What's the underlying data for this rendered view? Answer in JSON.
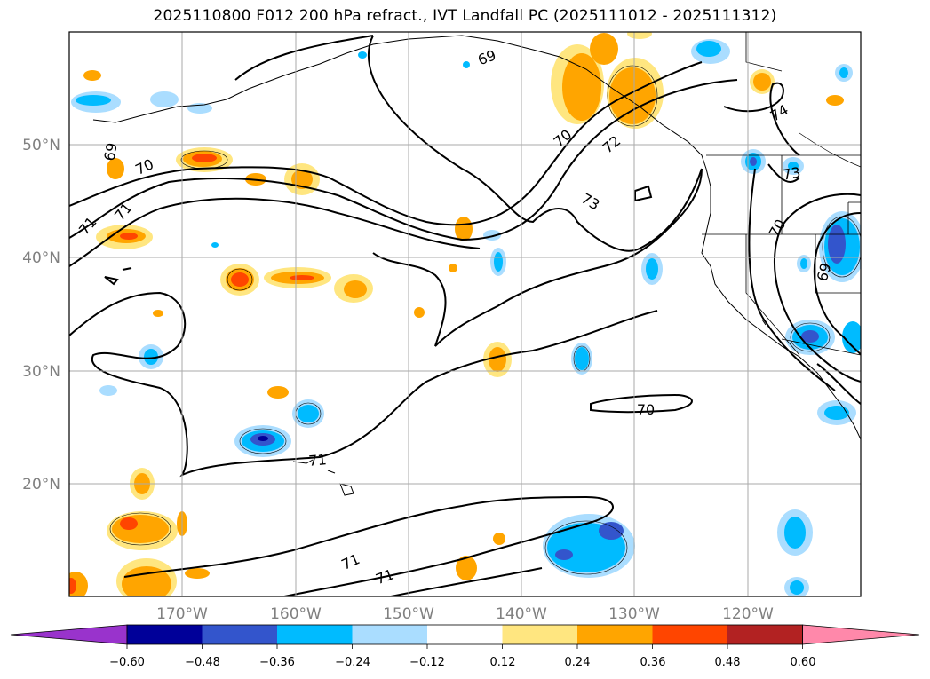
{
  "title": "2025110800 F012 200 hPa refract., IVT Landfall PC (2025111012 - 2025111312)",
  "map": {
    "lat_labels": [
      "50°N",
      "40°N",
      "30°N",
      "20°N"
    ],
    "lon_labels": [
      "170°W",
      "160°W",
      "150°W",
      "140°W",
      "130°W",
      "120°W"
    ],
    "contour_labels": [
      "69",
      "69",
      "70",
      "70",
      "70",
      "70",
      "71",
      "71",
      "71",
      "71",
      "72",
      "73",
      "73",
      "74",
      "69"
    ]
  },
  "colorbar": {
    "tick_labels": [
      "−0.60",
      "−0.48",
      "−0.36",
      "−0.24",
      "−0.12",
      "0.12",
      "0.24",
      "0.36",
      "0.48",
      "0.60"
    ],
    "colors": [
      "#9933cc",
      "#000099",
      "#3355cc",
      "#00bbff",
      "#aaddff",
      "#ffffff",
      "#ffe680",
      "#ffa500",
      "#ff4500",
      "#b22222",
      "#ff88aa"
    ]
  }
}
